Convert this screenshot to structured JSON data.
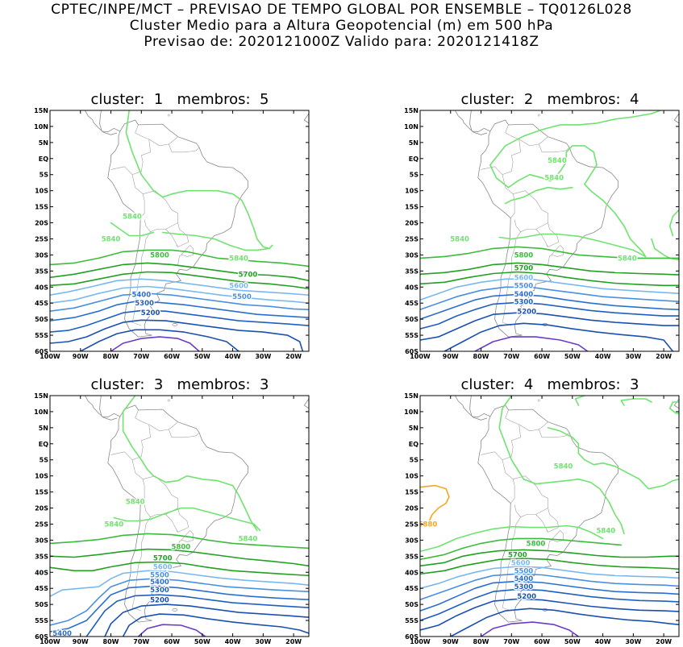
{
  "header": {
    "line1": "CPTEC/INPE/MCT – PREVISAO DE TEMPO GLOBAL POR ENSEMBLE – TQ0126L028",
    "line2": "Cluster Medio para a Altura Geopotencial (m) em 500 hPa",
    "line3": "Previsao de: 2020121000Z    Valido para: 2020121418Z"
  },
  "axes": {
    "lat_labels": [
      "15N",
      "10N",
      "5N",
      "EQ",
      "5S",
      "10S",
      "15S",
      "20S",
      "25S",
      "30S",
      "35S",
      "40S",
      "45S",
      "50S",
      "55S",
      "60S"
    ],
    "lon_labels": [
      "100W",
      "90W",
      "80W",
      "70W",
      "60W",
      "50W",
      "40W",
      "30W",
      "20W"
    ]
  },
  "colors": {
    "c5880": "#f5a623",
    "c5840": "#6fe36f",
    "c5800": "#3dbb3d",
    "c5700": "#22a022",
    "c5600": "#7ab8f0",
    "c5500": "#4a90e0",
    "c5400": "#2a6fd0",
    "c5300": "#1f5fc0",
    "c5200": "#1a50b0",
    "c5100": "#6a3bc8"
  },
  "panels": [
    {
      "title": "cluster:  1   membros:  5",
      "labels": [
        "5840",
        "5840",
        "5840",
        "5800",
        "5700",
        "5600",
        "5500",
        "5400",
        "5300",
        "5200"
      ]
    },
    {
      "title": "cluster:  2   membros:  4",
      "labels": [
        "5840",
        "5840",
        "5840",
        "5840",
        "5800",
        "5700",
        "5600",
        "5500",
        "5400",
        "5300",
        "5200"
      ]
    },
    {
      "title": "cluster:  3   membros:  3",
      "labels": [
        "5840",
        "5840",
        "5840",
        "5800",
        "5700",
        "5600",
        "5500",
        "5400",
        "5300",
        "5200",
        "5400"
      ]
    },
    {
      "title": "cluster:  4   membros:  3",
      "labels": [
        "5880",
        "5840",
        "5840",
        "5800",
        "5700",
        "5600",
        "5500",
        "5400",
        "5300",
        "5200"
      ]
    }
  ]
}
